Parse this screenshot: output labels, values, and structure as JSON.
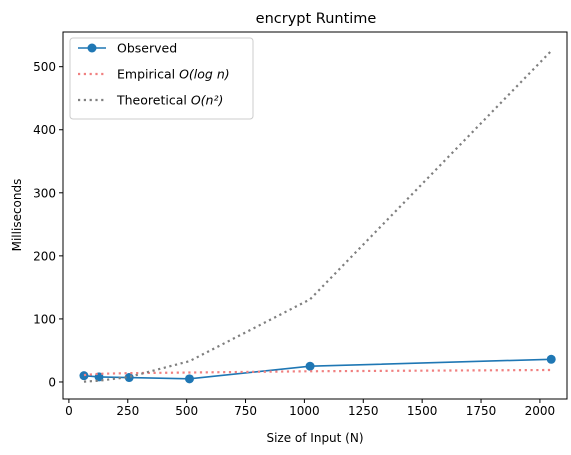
{
  "chart_data": {
    "type": "line",
    "title": "encrypt Runtime",
    "xlabel": "Size of Input (N)",
    "ylabel": "Milliseconds",
    "xlim": [
      -25,
      2115
    ],
    "ylim": [
      -27,
      555
    ],
    "xticks": [
      0,
      250,
      500,
      750,
      1000,
      1250,
      1500,
      1750,
      2000
    ],
    "yticks": [
      0,
      100,
      200,
      300,
      400,
      500
    ],
    "grid": false,
    "legend_position": "top-left",
    "series": [
      {
        "name": "Observed",
        "style": "solid-marker",
        "color": "#1f77b4",
        "x": [
          64,
          128,
          256,
          512,
          1024,
          2048
        ],
        "y": [
          10,
          8,
          7,
          5,
          25,
          36
        ]
      },
      {
        "name_prefix": "Empirical ",
        "name_math": "O(log n)",
        "style": "dotted",
        "color": "#f08080",
        "x": [
          64,
          128,
          256,
          512,
          1024,
          2048
        ],
        "y": [
          11,
          13,
          14,
          15,
          17,
          19
        ]
      },
      {
        "name_prefix": "Theoretical ",
        "name_math": "O(n²)",
        "style": "dotted",
        "color": "#7f7f7f",
        "x": [
          64,
          128,
          256,
          512,
          1024,
          2048
        ],
        "y": [
          0.5,
          2,
          8,
          33,
          131,
          525
        ]
      }
    ]
  }
}
